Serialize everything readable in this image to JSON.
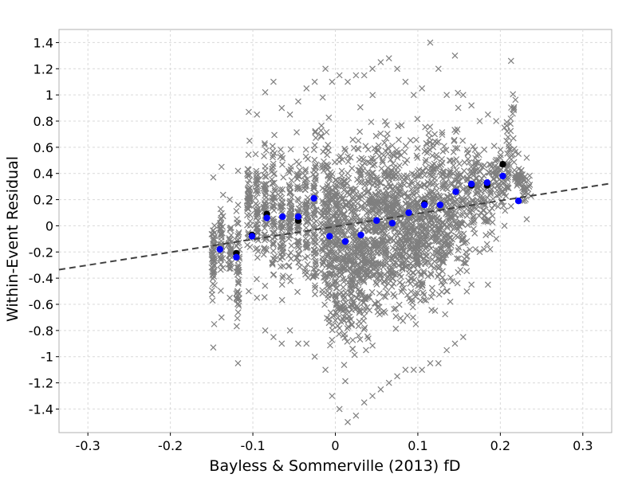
{
  "chart_data": {
    "type": "scatter",
    "xlabel": "Bayless & Sommerville (2013) fD",
    "ylabel": "Within-Event Residual",
    "xlim": [
      -0.335,
      0.335
    ],
    "ylim": [
      -1.58,
      1.5
    ],
    "x_ticks": [
      -0.3,
      -0.2,
      -0.1,
      0,
      0.1,
      0.2,
      0.3
    ],
    "x_tick_labels": [
      "-0.3",
      "-0.2",
      "-0.1",
      "0",
      "0.1",
      "0.2",
      "0.3"
    ],
    "y_ticks": [
      -1.4,
      -1.2,
      -1,
      -0.8,
      -0.6,
      -0.4,
      -0.2,
      0,
      0.2,
      0.4,
      0.6,
      0.8,
      1,
      1.2,
      1.4
    ],
    "y_tick_labels": [
      "-1.4",
      "-1.2",
      "-1",
      "-0.8",
      "-0.6",
      "-0.4",
      "-0.2",
      "0",
      "0.2",
      "0.4",
      "0.6",
      "0.8",
      "1",
      "1.2",
      "1.4"
    ],
    "grid": true,
    "colors": {
      "residuals": "#7f7f7f",
      "bin_means_black": "#000000",
      "bin_means_blue": "#0000ff",
      "trend": "#404040"
    },
    "trend_line": {
      "style": "dashed",
      "points": [
        [
          -0.335,
          -0.335
        ],
        [
          0.335,
          0.325
        ]
      ]
    },
    "residual_columns": [
      {
        "x": -0.148,
        "ymin": -0.93,
        "ymax": 0.37,
        "n": 50
      },
      {
        "x": -0.138,
        "ymin": -0.7,
        "ymax": 0.45,
        "n": 40
      },
      {
        "x": -0.128,
        "ymin": -0.55,
        "ymax": 0.2,
        "n": 30
      },
      {
        "x": -0.118,
        "ymin": -1.05,
        "ymax": 0.42,
        "n": 50
      },
      {
        "x": -0.105,
        "ymin": -0.5,
        "ymax": 0.87,
        "n": 50
      },
      {
        "x": -0.095,
        "ymin": -0.55,
        "ymax": 0.85,
        "n": 50
      },
      {
        "x": -0.085,
        "ymin": -0.8,
        "ymax": 1.02,
        "n": 60
      },
      {
        "x": -0.075,
        "ymin": -0.85,
        "ymax": 1.1,
        "n": 60
      },
      {
        "x": -0.065,
        "ymin": -0.9,
        "ymax": 0.9,
        "n": 60
      },
      {
        "x": -0.055,
        "ymin": -0.8,
        "ymax": 0.85,
        "n": 60
      },
      {
        "x": -0.045,
        "ymin": -0.9,
        "ymax": 0.95,
        "n": 60
      },
      {
        "x": -0.035,
        "ymin": -0.9,
        "ymax": 1.05,
        "n": 60
      },
      {
        "x": -0.025,
        "ymin": -1.0,
        "ymax": 1.1,
        "n": 80
      }
    ],
    "residual_cloud": [
      {
        "x": -0.012,
        "ymin": -1.1,
        "ymax": 1.2,
        "n": 110
      },
      {
        "x": -0.004,
        "ymin": -1.3,
        "ymax": 1.1,
        "n": 120
      },
      {
        "x": 0.005,
        "ymin": -1.4,
        "ymax": 1.15,
        "n": 130
      },
      {
        "x": 0.015,
        "ymin": -1.5,
        "ymax": 1.1,
        "n": 130
      },
      {
        "x": 0.025,
        "ymin": -1.45,
        "ymax": 1.15,
        "n": 130
      },
      {
        "x": 0.035,
        "ymin": -1.35,
        "ymax": 1.15,
        "n": 125
      },
      {
        "x": 0.045,
        "ymin": -1.3,
        "ymax": 1.2,
        "n": 125
      },
      {
        "x": 0.055,
        "ymin": -1.25,
        "ymax": 1.25,
        "n": 120
      },
      {
        "x": 0.065,
        "ymin": -1.2,
        "ymax": 1.28,
        "n": 120
      },
      {
        "x": 0.075,
        "ymin": -1.15,
        "ymax": 1.2,
        "n": 115
      },
      {
        "x": 0.085,
        "ymin": -1.1,
        "ymax": 1.1,
        "n": 110
      },
      {
        "x": 0.095,
        "ymin": -1.1,
        "ymax": 1.0,
        "n": 105
      },
      {
        "x": 0.105,
        "ymin": -1.1,
        "ymax": 1.05,
        "n": 100
      },
      {
        "x": 0.115,
        "ymin": -1.05,
        "ymax": 1.4,
        "n": 100
      },
      {
        "x": 0.125,
        "ymin": -1.05,
        "ymax": 1.2,
        "n": 95
      },
      {
        "x": 0.135,
        "ymin": -0.95,
        "ymax": 1.0,
        "n": 85
      },
      {
        "x": 0.145,
        "ymin": -0.9,
        "ymax": 1.3,
        "n": 70
      },
      {
        "x": 0.155,
        "ymin": -0.85,
        "ymax": 1.0,
        "n": 55
      },
      {
        "x": 0.165,
        "ymin": -0.45,
        "ymax": 0.92,
        "n": 50
      },
      {
        "x": 0.175,
        "ymin": -0.2,
        "ymax": 0.8,
        "n": 40
      },
      {
        "x": 0.185,
        "ymin": -0.45,
        "ymax": 0.85,
        "n": 40
      },
      {
        "x": 0.195,
        "ymin": -0.1,
        "ymax": 0.8,
        "n": 35
      },
      {
        "x": 0.205,
        "ymin": 0.0,
        "ymax": 0.75,
        "n": 35
      },
      {
        "x": 0.213,
        "ymin": 0.15,
        "ymax": 1.26,
        "n": 30
      },
      {
        "x": 0.222,
        "ymin": 0.2,
        "ymax": 0.55,
        "n": 25
      },
      {
        "x": 0.232,
        "ymin": 0.05,
        "ymax": 0.52,
        "n": 25
      }
    ],
    "bin_means_black": [
      {
        "x": -0.12,
        "y": -0.21
      },
      {
        "x": -0.101,
        "y": -0.07
      },
      {
        "x": -0.083,
        "y": 0.09
      },
      {
        "x": -0.045,
        "y": 0.04
      },
      {
        "x": 0.108,
        "y": 0.17
      },
      {
        "x": 0.165,
        "y": 0.31
      },
      {
        "x": 0.184,
        "y": 0.31
      },
      {
        "x": 0.203,
        "y": 0.47
      }
    ],
    "bin_means_blue": [
      {
        "x": -0.14,
        "y": -0.18
      },
      {
        "x": -0.12,
        "y": -0.24
      },
      {
        "x": -0.101,
        "y": -0.08
      },
      {
        "x": -0.083,
        "y": 0.06
      },
      {
        "x": -0.064,
        "y": 0.07
      },
      {
        "x": -0.045,
        "y": 0.07
      },
      {
        "x": -0.026,
        "y": 0.21
      },
      {
        "x": -0.007,
        "y": -0.08
      },
      {
        "x": 0.012,
        "y": -0.12
      },
      {
        "x": 0.031,
        "y": -0.07
      },
      {
        "x": 0.05,
        "y": 0.04
      },
      {
        "x": 0.069,
        "y": 0.02
      },
      {
        "x": 0.089,
        "y": 0.1
      },
      {
        "x": 0.108,
        "y": 0.16
      },
      {
        "x": 0.127,
        "y": 0.16
      },
      {
        "x": 0.146,
        "y": 0.26
      },
      {
        "x": 0.165,
        "y": 0.32
      },
      {
        "x": 0.184,
        "y": 0.33
      },
      {
        "x": 0.203,
        "y": 0.38
      },
      {
        "x": 0.222,
        "y": 0.19
      }
    ]
  }
}
